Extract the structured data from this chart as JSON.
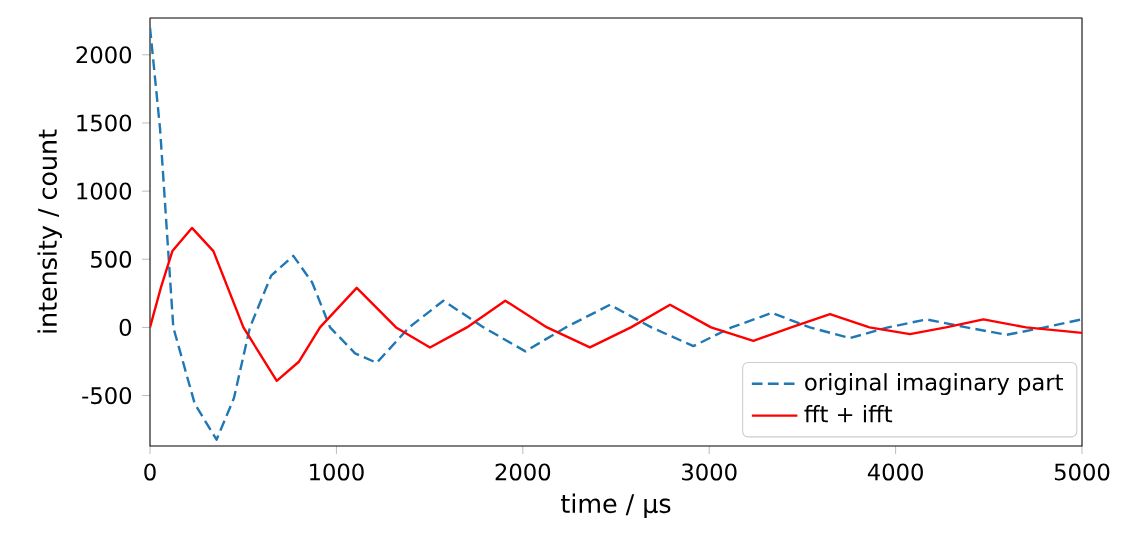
{
  "chart_data": {
    "type": "line",
    "xlabel": "time / µs",
    "ylabel": "intensity / count",
    "xlim": [
      0,
      5000
    ],
    "ylim": [
      -870,
      2270
    ],
    "xticks": [
      0,
      1000,
      2000,
      3000,
      4000,
      5000
    ],
    "yticks": [
      -500,
      0,
      500,
      1000,
      1500,
      2000
    ],
    "legend": "bottom right",
    "grid": false,
    "marker": "none",
    "series": [
      {
        "name": "original imaginary part",
        "color": "#1f77b4",
        "line_style": "dashed",
        "x": [
          0,
          54,
          125,
          240,
          357,
          450,
          536,
          650,
          769,
          870,
          966,
          1100,
          1216,
          1390,
          1574,
          1790,
          2014,
          2230,
          2468,
          2690,
          2915,
          3120,
          3337,
          3540,
          3755,
          3960,
          4166,
          4380,
          4596,
          4800,
          5000
        ],
        "values": [
          2200,
          1456,
          0,
          -560,
          -824,
          -520,
          0,
          380,
          525,
          330,
          0,
          -190,
          -260,
          0,
          196,
          0,
          -176,
          0,
          166,
          0,
          -137,
          0,
          107,
          0,
          -78,
          0,
          59,
          0,
          -54,
          0,
          59
        ]
      },
      {
        "name": "fft + ifft",
        "color": "#ff0000",
        "line_style": "solid",
        "x": [
          0,
          60,
          120,
          225,
          340,
          501,
          680,
          800,
          912,
          1109,
          1320,
          1502,
          1700,
          1906,
          2130,
          2360,
          2580,
          2790,
          3010,
          3237,
          3440,
          3648,
          3860,
          4077,
          4270,
          4471,
          4700,
          5000
        ],
        "values": [
          0,
          300,
          560,
          730,
          560,
          0,
          -392,
          -250,
          0,
          290,
          0,
          -147,
          0,
          196,
          0,
          -147,
          0,
          166,
          0,
          -98,
          0,
          98,
          0,
          -49,
          0,
          59,
          0,
          -40
        ]
      }
    ]
  }
}
